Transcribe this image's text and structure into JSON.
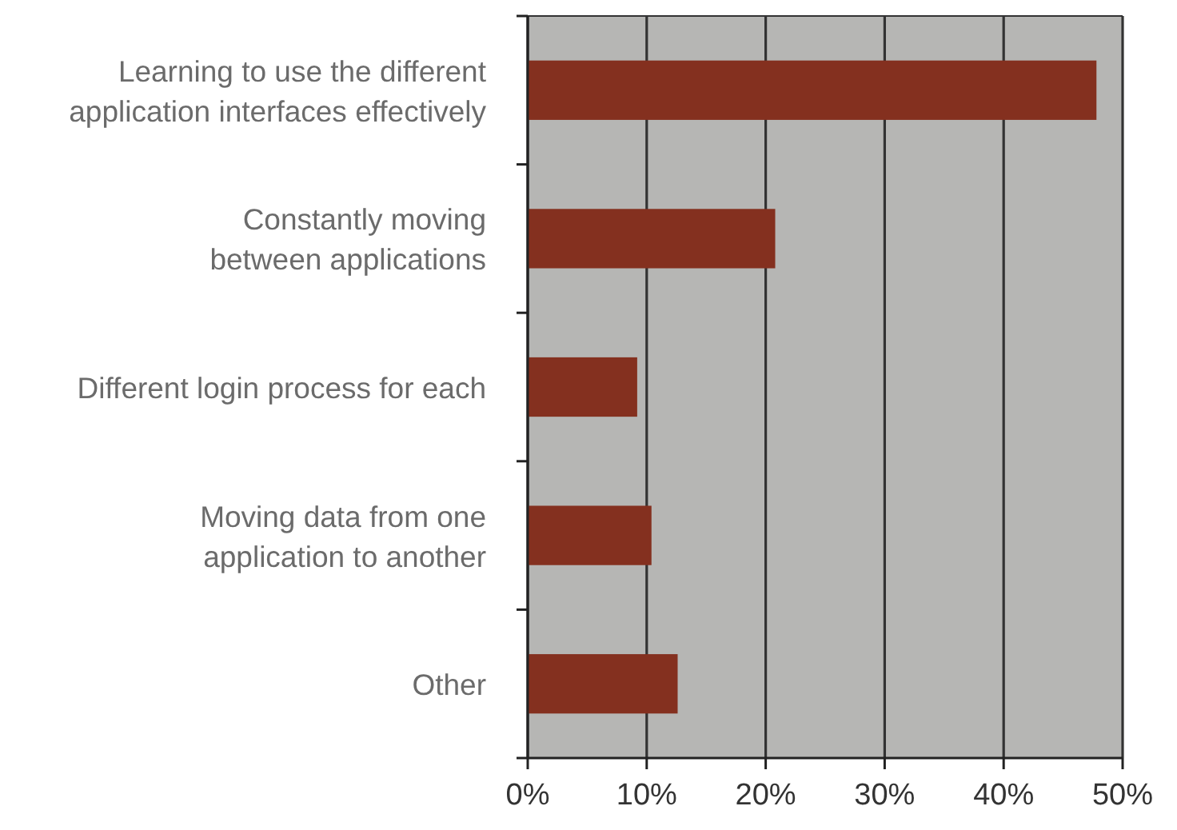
{
  "chart_data": {
    "type": "bar",
    "orientation": "horizontal",
    "categories": [
      "Learning to use the different\napplication interfaces effectively",
      "Constantly moving\nbetween applications",
      "Different login process for each",
      "Moving data from one\napplication to another",
      "Other"
    ],
    "values": [
      47.8,
      20.8,
      9.2,
      10.4,
      12.6
    ],
    "color": "#84301f",
    "xlim": [
      0,
      50
    ],
    "xticks": [
      {
        "value": 0,
        "label": "0%"
      },
      {
        "value": 10,
        "label": "10%"
      },
      {
        "value": 20,
        "label": "20%"
      },
      {
        "value": 30,
        "label": "30%"
      },
      {
        "value": 40,
        "label": "40%"
      },
      {
        "value": 50,
        "label": "50%"
      }
    ],
    "grid": "x"
  }
}
